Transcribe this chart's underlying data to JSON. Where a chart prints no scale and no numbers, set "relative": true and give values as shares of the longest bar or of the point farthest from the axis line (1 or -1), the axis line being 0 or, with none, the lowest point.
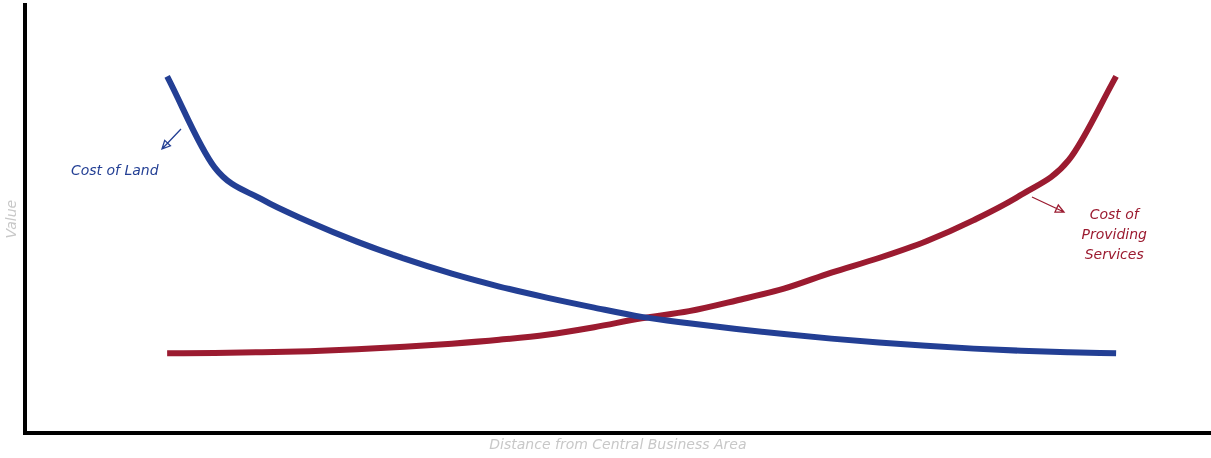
{
  "chart_data": {
    "type": "line",
    "relative": true,
    "xlabel": "Distance from Central Business Area",
    "ylabel": "Value",
    "grid": false,
    "marker": "none",
    "categories": [
      null,
      null,
      null,
      null,
      null,
      null,
      null,
      null,
      null,
      null,
      null,
      null,
      null,
      null,
      null,
      null,
      null,
      null,
      null,
      null,
      null,
      null,
      null,
      null,
      null,
      null
    ],
    "series": [
      {
        "name": "Cost of Land",
        "color": "#233f94",
        "values": [
          null,
          null,
          null,
          1.0,
          0.745,
          0.655,
          0.592,
          0.537,
          0.489,
          0.447,
          0.411,
          0.38,
          0.352,
          0.326,
          0.308,
          0.292,
          0.278,
          0.265,
          0.254,
          0.245,
          0.237,
          0.231,
          0.227,
          0.224,
          null,
          null
        ]
      },
      {
        "name": "Cost of Providing Services",
        "color": "#9b1b30",
        "values": [
          null,
          null,
          null,
          0.224,
          0.225,
          0.227,
          0.23,
          0.235,
          0.242,
          0.251,
          0.262,
          0.276,
          0.297,
          0.322,
          0.342,
          0.372,
          0.405,
          0.45,
          0.491,
          0.538,
          0.597,
          0.668,
          0.765,
          1.0,
          null,
          null
        ]
      }
    ]
  }
}
